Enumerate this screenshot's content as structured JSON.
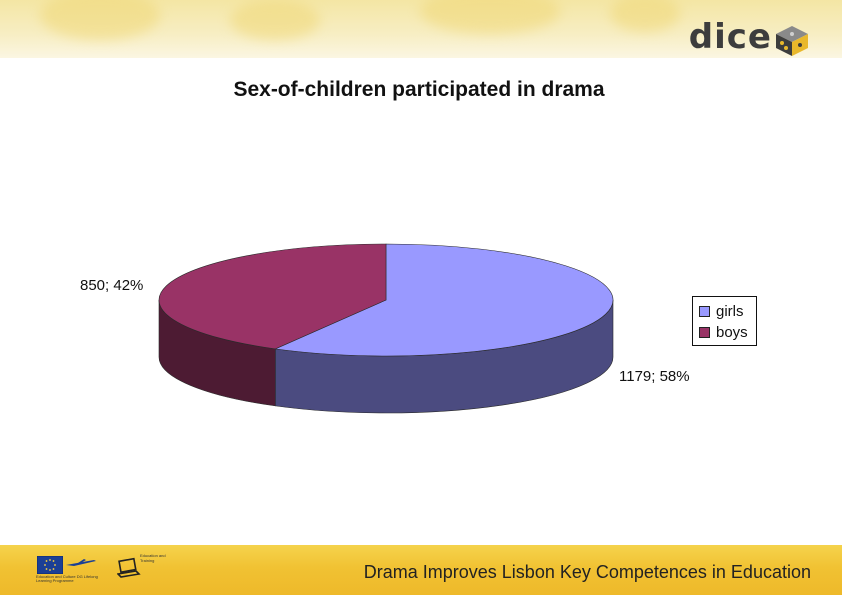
{
  "logo": {
    "text": "dice",
    "icon": "dice-cube-icon"
  },
  "chart_data": {
    "type": "pie",
    "title": "Sex-of-children participated in drama",
    "categories": [
      "girls",
      "boys"
    ],
    "values": [
      1179,
      850
    ],
    "data_labels": [
      "1179; 58%",
      "850; 42%"
    ],
    "colors": {
      "girls": "#9999ff",
      "girls_side": "#4b4b80",
      "boys": "#993366",
      "boys_side": "#4d1b33"
    },
    "legend_placement": "right",
    "style": "3d-tilted"
  },
  "footer": {
    "text": "Drama Improves Lisbon Key Competences in Education",
    "left_logos": [
      "eu-flag-icon",
      "lifelong-learning-programme-logo",
      "partner-laptop-icon"
    ],
    "llp_caption": "Education and Culture DG Lifelong Learning Programme",
    "partner_caption": "Education and Training"
  }
}
